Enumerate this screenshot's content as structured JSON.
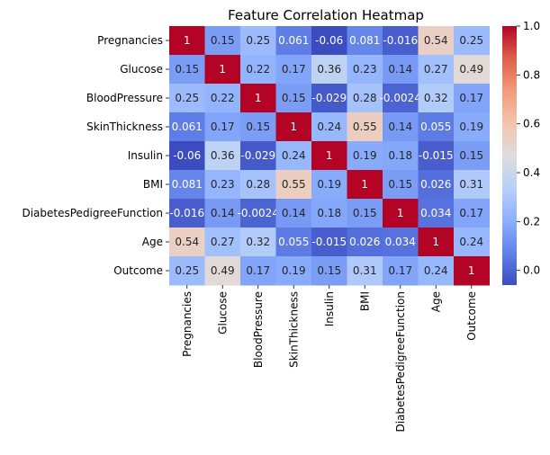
{
  "chart_data": {
    "type": "heatmap",
    "title": "Feature Correlation Heatmap",
    "xlabel": "",
    "ylabel": "",
    "colormap": "coolwarm",
    "color_range": [
      -0.06,
      1
    ],
    "row_labels": [
      "Pregnancies",
      "Glucose",
      "BloodPressure",
      "SkinThickness",
      "Insulin",
      "BMI",
      "DiabetesPedigreeFunction",
      "Age",
      "Outcome"
    ],
    "col_labels": [
      "Pregnancies",
      "Glucose",
      "BloodPressure",
      "SkinThickness",
      "Insulin",
      "BMI",
      "DiabetesPedigreeFunction",
      "Age",
      "Outcome"
    ],
    "values": [
      [
        1,
        0.15,
        0.25,
        0.061,
        -0.06,
        0.081,
        -0.016,
        0.54,
        0.25
      ],
      [
        0.15,
        1,
        0.22,
        0.17,
        0.36,
        0.23,
        0.14,
        0.27,
        0.49
      ],
      [
        0.25,
        0.22,
        1,
        0.15,
        -0.029,
        0.28,
        -0.0024,
        0.32,
        0.17
      ],
      [
        0.061,
        0.17,
        0.15,
        1,
        0.24,
        0.55,
        0.14,
        0.055,
        0.19
      ],
      [
        -0.06,
        0.36,
        -0.029,
        0.24,
        1,
        0.19,
        0.18,
        -0.015,
        0.15
      ],
      [
        0.081,
        0.23,
        0.28,
        0.55,
        0.19,
        1,
        0.15,
        0.026,
        0.31
      ],
      [
        -0.016,
        0.14,
        -0.0024,
        0.14,
        0.18,
        0.15,
        1,
        0.034,
        0.17
      ],
      [
        0.54,
        0.27,
        0.32,
        0.055,
        -0.015,
        0.026,
        0.034,
        1,
        0.24
      ],
      [
        0.25,
        0.49,
        0.17,
        0.19,
        0.15,
        0.31,
        0.17,
        0.24,
        1
      ]
    ],
    "cell_text": [
      [
        "1",
        "0.15",
        "0.25",
        "0.061",
        "-0.06",
        "0.081",
        "-0.016",
        "0.54",
        "0.25"
      ],
      [
        "0.15",
        "1",
        "0.22",
        "0.17",
        "0.36",
        "0.23",
        "0.14",
        "0.27",
        "0.49"
      ],
      [
        "0.25",
        "0.22",
        "1",
        "0.15",
        "-0.029",
        "0.28",
        "-0.0024",
        "0.32",
        "0.17"
      ],
      [
        "0.061",
        "0.17",
        "0.15",
        "1",
        "0.24",
        "0.55",
        "0.14",
        "0.055",
        "0.19"
      ],
      [
        "-0.06",
        "0.36",
        "-0.029",
        "0.24",
        "1",
        "0.19",
        "0.18",
        "-0.015",
        "0.15"
      ],
      [
        "0.081",
        "0.23",
        "0.28",
        "0.55",
        "0.19",
        "1",
        "0.15",
        "0.026",
        "0.31"
      ],
      [
        "-0.016",
        "0.14",
        "-0.0024",
        "0.14",
        "0.18",
        "0.15",
        "1",
        "0.034",
        "0.17"
      ],
      [
        "0.54",
        "0.27",
        "0.32",
        "0.055",
        "-0.015",
        "0.026",
        "0.034",
        "1",
        "0.24"
      ],
      [
        "0.25",
        "0.49",
        "0.17",
        "0.19",
        "0.15",
        "0.31",
        "0.17",
        "0.24",
        "1"
      ]
    ],
    "colorbar": {
      "ticks": [
        0.0,
        0.2,
        0.4,
        0.6,
        0.8,
        1.0
      ],
      "tick_labels": [
        "0.0",
        "0.2",
        "0.4",
        "0.6",
        "0.8",
        "1.0"
      ]
    }
  }
}
